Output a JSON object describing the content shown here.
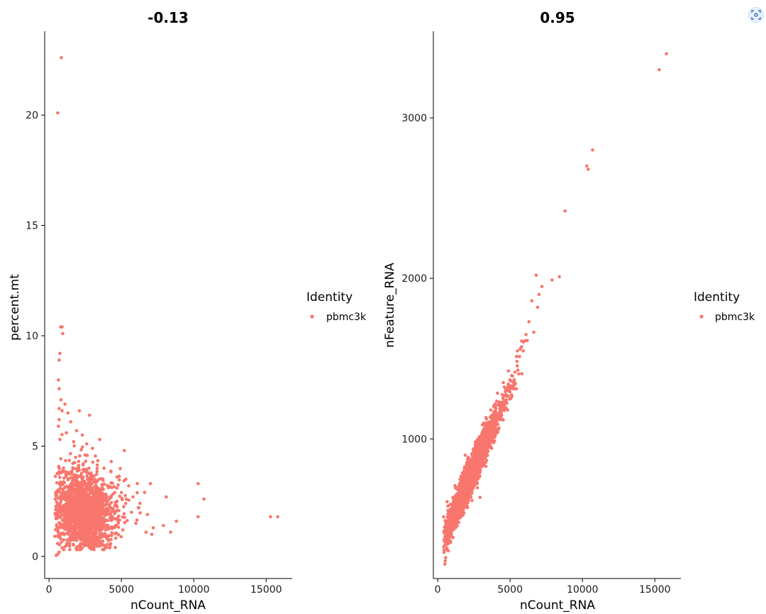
{
  "chart_data": [
    {
      "type": "scatter",
      "title": "-0.13",
      "xlabel": "nCount_RNA",
      "ylabel": "percent.mt",
      "xlim": [
        -300,
        16800
      ],
      "ylim": [
        -1.0,
        23.8
      ],
      "xticks": [
        0,
        5000,
        10000,
        15000
      ],
      "yticks": [
        0,
        5,
        10,
        15,
        20
      ],
      "xtick_labels": [
        "0",
        "5000",
        "10000",
        "15000"
      ],
      "ytick_labels": [
        "0",
        "5",
        "10",
        "15",
        "20"
      ],
      "legend": {
        "title": "Identity",
        "entries": [
          "pbmc3k"
        ],
        "placement": "right"
      },
      "grid": false,
      "point_color": "#F8766D",
      "series": [
        {
          "name": "pbmc3k",
          "points": [
            [
              850,
              22.6
            ],
            [
              600,
              20.1
            ],
            [
              800,
              10.4
            ],
            [
              900,
              10.4
            ],
            [
              950,
              10.1
            ],
            [
              750,
              9.2
            ],
            [
              700,
              8.9
            ],
            [
              650,
              8.0
            ],
            [
              700,
              7.6
            ],
            [
              820,
              7.1
            ],
            [
              1100,
              6.9
            ],
            [
              700,
              6.7
            ],
            [
              900,
              6.6
            ],
            [
              1300,
              6.5
            ],
            [
              2100,
              6.6
            ],
            [
              2800,
              6.4
            ],
            [
              700,
              6.2
            ],
            [
              1500,
              6.1
            ],
            [
              650,
              5.9
            ],
            [
              1900,
              5.7
            ],
            [
              1200,
              5.6
            ],
            [
              2300,
              5.5
            ],
            [
              750,
              5.3
            ],
            [
              3500,
              5.3
            ],
            [
              1700,
              5.2
            ],
            [
              2600,
              5.1
            ],
            [
              5200,
              4.8
            ],
            [
              3000,
              4.9
            ],
            [
              4300,
              4.3
            ],
            [
              3800,
              4.0
            ],
            [
              4700,
              3.6
            ],
            [
              5300,
              3.5
            ],
            [
              5500,
              3.2
            ],
            [
              6100,
              3.3
            ],
            [
              5000,
              2.9
            ],
            [
              5800,
              2.7
            ],
            [
              6600,
              2.9
            ],
            [
              7000,
              3.3
            ],
            [
              8100,
              2.7
            ],
            [
              6200,
              2.2
            ],
            [
              6800,
              1.9
            ],
            [
              5300,
              2.4
            ],
            [
              5700,
              2.0
            ],
            [
              4700,
              2.5
            ],
            [
              4600,
              1.4
            ],
            [
              5100,
              1.2
            ],
            [
              6000,
              1.5
            ],
            [
              6700,
              1.1
            ],
            [
              7200,
              1.3
            ],
            [
              7900,
              1.4
            ],
            [
              7100,
              1.0
            ],
            [
              8400,
              1.1
            ],
            [
              8800,
              1.6
            ],
            [
              10300,
              1.8
            ],
            [
              10300,
              3.3
            ],
            [
              10700,
              2.6
            ],
            [
              15300,
              1.8
            ],
            [
              15800,
              1.8
            ],
            [
              600,
              0.1
            ],
            [
              700,
              0.2
            ],
            [
              500,
              0.05
            ],
            [
              900,
              0.4
            ]
          ],
          "dense_clusters": [
            {
              "x_mean": 2400,
              "x_sd": 800,
              "y_mean": 1.9,
              "y_sd": 0.75,
              "count": 1500
            },
            {
              "x_mean": 1700,
              "x_sd": 600,
              "y_mean": 2.7,
              "y_sd": 0.9,
              "count": 350
            },
            {
              "x_mean": 3400,
              "x_sd": 1100,
              "y_mean": 2.0,
              "y_sd": 0.8,
              "count": 250
            }
          ]
        }
      ]
    },
    {
      "type": "scatter",
      "title": "0.95",
      "xlabel": "nCount_RNA",
      "ylabel": "nFeature_RNA",
      "xlim": [
        -300,
        16800
      ],
      "ylim": [
        130,
        3540
      ],
      "xticks": [
        0,
        5000,
        10000,
        15000
      ],
      "yticks": [
        1000,
        2000,
        3000
      ],
      "xtick_labels": [
        "0",
        "5000",
        "10000",
        "15000"
      ],
      "ytick_labels": [
        "1000",
        "2000",
        "3000"
      ],
      "legend": {
        "title": "Identity",
        "entries": [
          "pbmc3k"
        ],
        "placement": "right"
      },
      "grid": false,
      "point_color": "#F8766D",
      "series": [
        {
          "name": "pbmc3k",
          "points": [
            [
              15300,
              3300
            ],
            [
              15800,
              3400
            ],
            [
              10700,
              2800
            ],
            [
              10300,
              2700
            ],
            [
              10400,
              2680
            ],
            [
              8800,
              2420
            ],
            [
              8400,
              2010
            ],
            [
              7900,
              1990
            ],
            [
              6800,
              2020
            ],
            [
              7200,
              1950
            ],
            [
              6500,
              1860
            ],
            [
              7000,
              1900
            ],
            [
              6900,
              1820
            ],
            [
              6300,
              1730
            ],
            [
              6100,
              1650
            ],
            [
              5700,
              1560
            ],
            [
              5800,
              1610
            ],
            [
              500,
              220
            ],
            [
              550,
              260
            ],
            [
              600,
              310
            ],
            [
              520,
              240
            ]
          ],
          "trend": {
            "slope": 0.205,
            "intercept": 300,
            "scatter_sd": 55
          },
          "dense_clusters": [
            {
              "x_mean": 2300,
              "x_sd": 700,
              "count": 1700
            },
            {
              "x_mean": 3500,
              "x_sd": 1000,
              "count": 400
            },
            {
              "x_mean": 1200,
              "x_sd": 400,
              "count": 300
            }
          ]
        }
      ]
    }
  ]
}
